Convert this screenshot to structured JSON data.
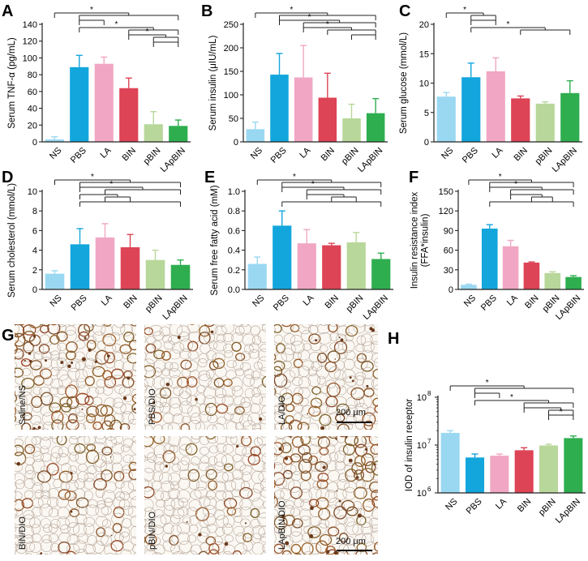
{
  "colors": {
    "NS": "#9ad8f2",
    "PBS": "#13a6dd",
    "LA": "#f1a7c3",
    "BIN": "#dd4456",
    "pBIN": "#b8d79a",
    "LApBIN": "#2fae4f"
  },
  "groups": [
    "NS",
    "PBS",
    "LA",
    "BIN",
    "pBIN",
    "LApBIN"
  ],
  "chart_data": [
    {
      "panel": "A",
      "type": "bar",
      "ylabel": "Serum TNF-α (pg/mL)",
      "ylim": [
        0,
        140
      ],
      "yticks": [
        0,
        20,
        40,
        60,
        80,
        100,
        120,
        140
      ],
      "categories": [
        "NS",
        "PBS",
        "LA",
        "BIN",
        "pBIN",
        "LApBIN"
      ],
      "tick_labels": [
        "NS",
        "PBS",
        "LA",
        "BIN",
        "pBIN",
        "LApBIN"
      ],
      "values": [
        3,
        89,
        93,
        64,
        21,
        19
      ],
      "errors": [
        3,
        14,
        8,
        12,
        15,
        7
      ],
      "significance": [
        {
          "from": 0,
          "to": [
            1,
            2,
            3,
            4,
            5
          ],
          "label": "*"
        },
        {
          "from": 1,
          "to": [
            2
          ],
          "label": ""
        },
        {
          "from": 1,
          "to": [
            3,
            4,
            5
          ],
          "label": "*"
        },
        {
          "from": 3,
          "to": [
            4,
            5
          ],
          "label": "*"
        },
        {
          "from": 4,
          "to": [
            5
          ],
          "label": ""
        }
      ]
    },
    {
      "panel": "B",
      "type": "bar",
      "ylabel": "Serum insulin (μIU/mL)",
      "ylim": [
        0,
        250
      ],
      "yticks": [
        0,
        50,
        100,
        150,
        200,
        250
      ],
      "categories": [
        "NS",
        "PBS",
        "LA",
        "BIN",
        "pBIN",
        "LApBIN"
      ],
      "tick_labels": [
        "NS",
        "PBS",
        "LA",
        "BIN",
        "pBIN",
        "LApBIN"
      ],
      "values": [
        27,
        143,
        137,
        94,
        50,
        61
      ],
      "errors": [
        15,
        45,
        68,
        52,
        30,
        31
      ],
      "significance": [
        {
          "from": 0,
          "to": [
            1,
            2,
            3,
            4,
            5
          ],
          "label": "*"
        },
        {
          "from": 1,
          "to": [
            2,
            3,
            4,
            5
          ],
          "label": "*"
        },
        {
          "from": 2,
          "to": [
            3,
            4,
            5
          ],
          "label": "*"
        },
        {
          "from": 4,
          "to": [
            5
          ],
          "label": ""
        }
      ]
    },
    {
      "panel": "C",
      "type": "bar",
      "ylabel": "Serum glucose (mmol/L)",
      "ylim": [
        0,
        20
      ],
      "yticks": [
        0,
        5,
        10,
        15,
        20
      ],
      "categories": [
        "NS",
        "PBS",
        "LA",
        "BIN",
        "pBIN",
        "LApBIN"
      ],
      "tick_labels": [
        "NS",
        "PBS",
        "LA",
        "BIN",
        "pBIN",
        "LApBIN"
      ],
      "values": [
        7.7,
        11.0,
        12.0,
        7.4,
        6.5,
        8.3
      ],
      "errors": [
        0.7,
        2.4,
        2.3,
        0.4,
        0.3,
        2.1
      ],
      "significance": [
        {
          "from": 0,
          "to": [
            1,
            2
          ],
          "label": "*"
        },
        {
          "from": 1,
          "to": [
            2
          ],
          "label": ""
        },
        {
          "from": 1,
          "to": [
            3,
            4,
            5
          ],
          "label": "*"
        }
      ]
    },
    {
      "panel": "D",
      "type": "bar",
      "ylabel": "Serum cholesterol (mmol/L)",
      "ylim": [
        0,
        10
      ],
      "yticks": [
        0,
        2,
        4,
        6,
        8,
        10
      ],
      "categories": [
        "NS",
        "PBS",
        "LA",
        "BIN",
        "pBIN",
        "LApBIN"
      ],
      "tick_labels": [
        "NS",
        "PBS",
        "LA",
        "BIN",
        "pBIN",
        "LApBIN"
      ],
      "values": [
        1.6,
        4.6,
        5.3,
        4.3,
        3.0,
        2.5
      ],
      "errors": [
        0.3,
        1.6,
        1.4,
        1.3,
        1.0,
        0.5
      ],
      "significance": [
        {
          "from": 0,
          "to": [
            1,
            2,
            3,
            4,
            5
          ],
          "label": "*"
        },
        {
          "from": 1,
          "to": [
            2,
            3,
            4,
            5
          ],
          "label": "*"
        },
        {
          "from": 1,
          "to": [
            2,
            3
          ],
          "label": ""
        },
        {
          "from": 1,
          "to": [
            5
          ],
          "label": ""
        }
      ]
    },
    {
      "panel": "E",
      "type": "bar",
      "ylabel": "Serum free fatty acid (mM)",
      "ylim": [
        0,
        1.0
      ],
      "yticks": [
        0.0,
        0.2,
        0.4,
        0.6,
        0.8,
        1.0
      ],
      "categories": [
        "NS",
        "PBS",
        "LA",
        "BIN",
        "pBIN",
        "LApBIN"
      ],
      "tick_labels": [
        "NS",
        "PBS",
        "LA",
        "BIN",
        "pBIN",
        "LApBIN"
      ],
      "values": [
        0.26,
        0.65,
        0.47,
        0.45,
        0.48,
        0.31
      ],
      "errors": [
        0.07,
        0.15,
        0.14,
        0.02,
        0.1,
        0.06
      ],
      "significance": [
        {
          "from": 0,
          "to": [
            1,
            2,
            3,
            4,
            5
          ],
          "label": "*"
        },
        {
          "from": 1,
          "to": [
            2,
            3,
            4,
            5
          ],
          "label": "*"
        },
        {
          "from": 2,
          "to": [
            3,
            4
          ],
          "label": ""
        },
        {
          "from": 1,
          "to": [
            5
          ],
          "label": ""
        }
      ]
    },
    {
      "panel": "F",
      "type": "bar",
      "ylabel": "Insulin resistance index\n(FFA*insulin)",
      "ylim": [
        0,
        150
      ],
      "yticks": [
        0,
        30,
        60,
        90,
        120,
        150
      ],
      "categories": [
        "NS",
        "PBS",
        "LA",
        "BIN",
        "pBIN",
        "LApBIN"
      ],
      "tick_labels": [
        "NS",
        "PBS",
        "LA",
        "BIN",
        "pBIN",
        "LApBIN"
      ],
      "values": [
        7,
        93,
        66,
        41,
        25,
        19
      ],
      "errors": [
        1,
        6,
        9,
        1,
        2,
        2
      ],
      "significance": [
        {
          "from": 0,
          "to": [
            1,
            2,
            3,
            4,
            5
          ],
          "label": "*"
        },
        {
          "from": 1,
          "to": [
            2,
            3,
            4,
            5
          ],
          "label": "*"
        },
        {
          "from": 2,
          "to": [
            3,
            4
          ],
          "label": ""
        },
        {
          "from": 1,
          "to": [
            5
          ],
          "label": ""
        }
      ]
    },
    {
      "panel": "H",
      "type": "bar",
      "yscale": "log",
      "ylabel": "IOD of insulin receptor",
      "ylim": [
        1000000,
        100000000
      ],
      "yticks": [
        1000000,
        10000000,
        100000000
      ],
      "ytick_labels": [
        [
          "10",
          "6"
        ],
        [
          "10",
          "7"
        ],
        [
          "10",
          "8"
        ]
      ],
      "categories": [
        "NS",
        "PBS",
        "LA",
        "BIN",
        "pBIN",
        "LApBIN"
      ],
      "tick_labels": [
        "NS",
        "PBS",
        "LA",
        "BIN",
        "pBIN",
        "LApBIN"
      ],
      "values": [
        18000000,
        5500000,
        6000000,
        7800000,
        9800000,
        14000000
      ],
      "errors": [
        2000000,
        1000000,
        500000,
        1000000,
        600000,
        1500000
      ],
      "significance": [
        {
          "from": 0,
          "to": [
            1,
            2,
            3,
            4,
            5
          ],
          "label": "*"
        },
        {
          "from": 1,
          "to": [
            2
          ],
          "label": ""
        },
        {
          "from": 1,
          "to": [
            3,
            4,
            5
          ],
          "label": "*"
        },
        {
          "from": 3,
          "to": [
            4,
            5
          ],
          "label": ""
        },
        {
          "from": 4,
          "to": [
            5
          ],
          "label": "*"
        }
      ]
    }
  ],
  "micrographs": {
    "panel": "G",
    "images": [
      {
        "label": "Saline/NS",
        "stain": "heavy"
      },
      {
        "label": "PBS/DIO",
        "stain": "light"
      },
      {
        "label": "LA/DIO",
        "stain": "medium"
      },
      {
        "label": "BIN/DIO",
        "stain": "light"
      },
      {
        "label": "pBIN/DIO",
        "stain": "light"
      },
      {
        "label": "LApBIN/DIO",
        "stain": "heavy"
      }
    ],
    "scale_bars": [
      "200 μm",
      "200 μm"
    ]
  }
}
